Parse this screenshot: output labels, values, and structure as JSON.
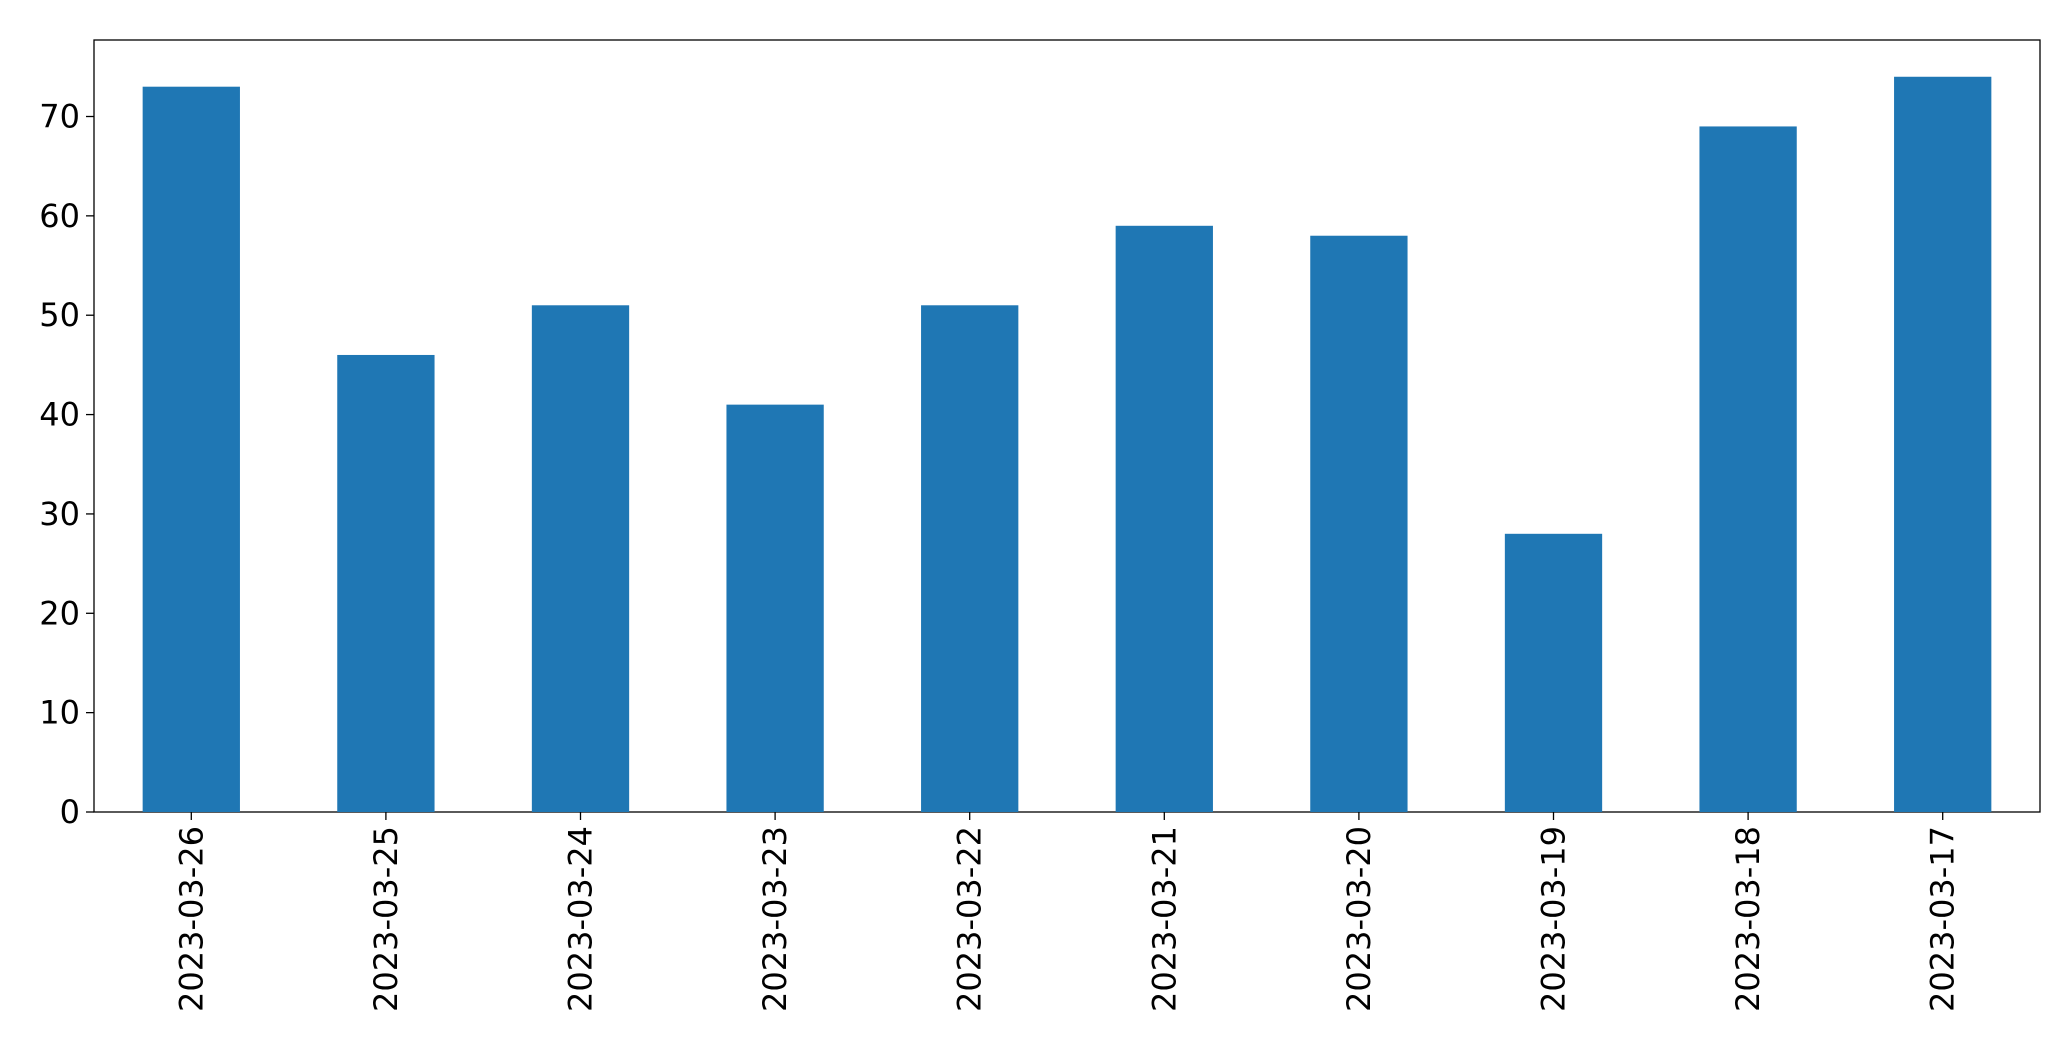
{
  "chart_data": {
    "type": "bar",
    "categories": [
      "2023-03-26",
      "2023-03-25",
      "2023-03-24",
      "2023-03-23",
      "2023-03-22",
      "2023-03-21",
      "2023-03-20",
      "2023-03-19",
      "2023-03-18",
      "2023-03-17"
    ],
    "values": [
      73,
      46,
      51,
      41,
      51,
      59,
      58,
      28,
      69,
      74
    ],
    "color": "#1f77b4",
    "ylim": [
      0,
      77.7
    ],
    "yticks": [
      0,
      10,
      20,
      30,
      40,
      50,
      60,
      70
    ],
    "grid": false
  }
}
